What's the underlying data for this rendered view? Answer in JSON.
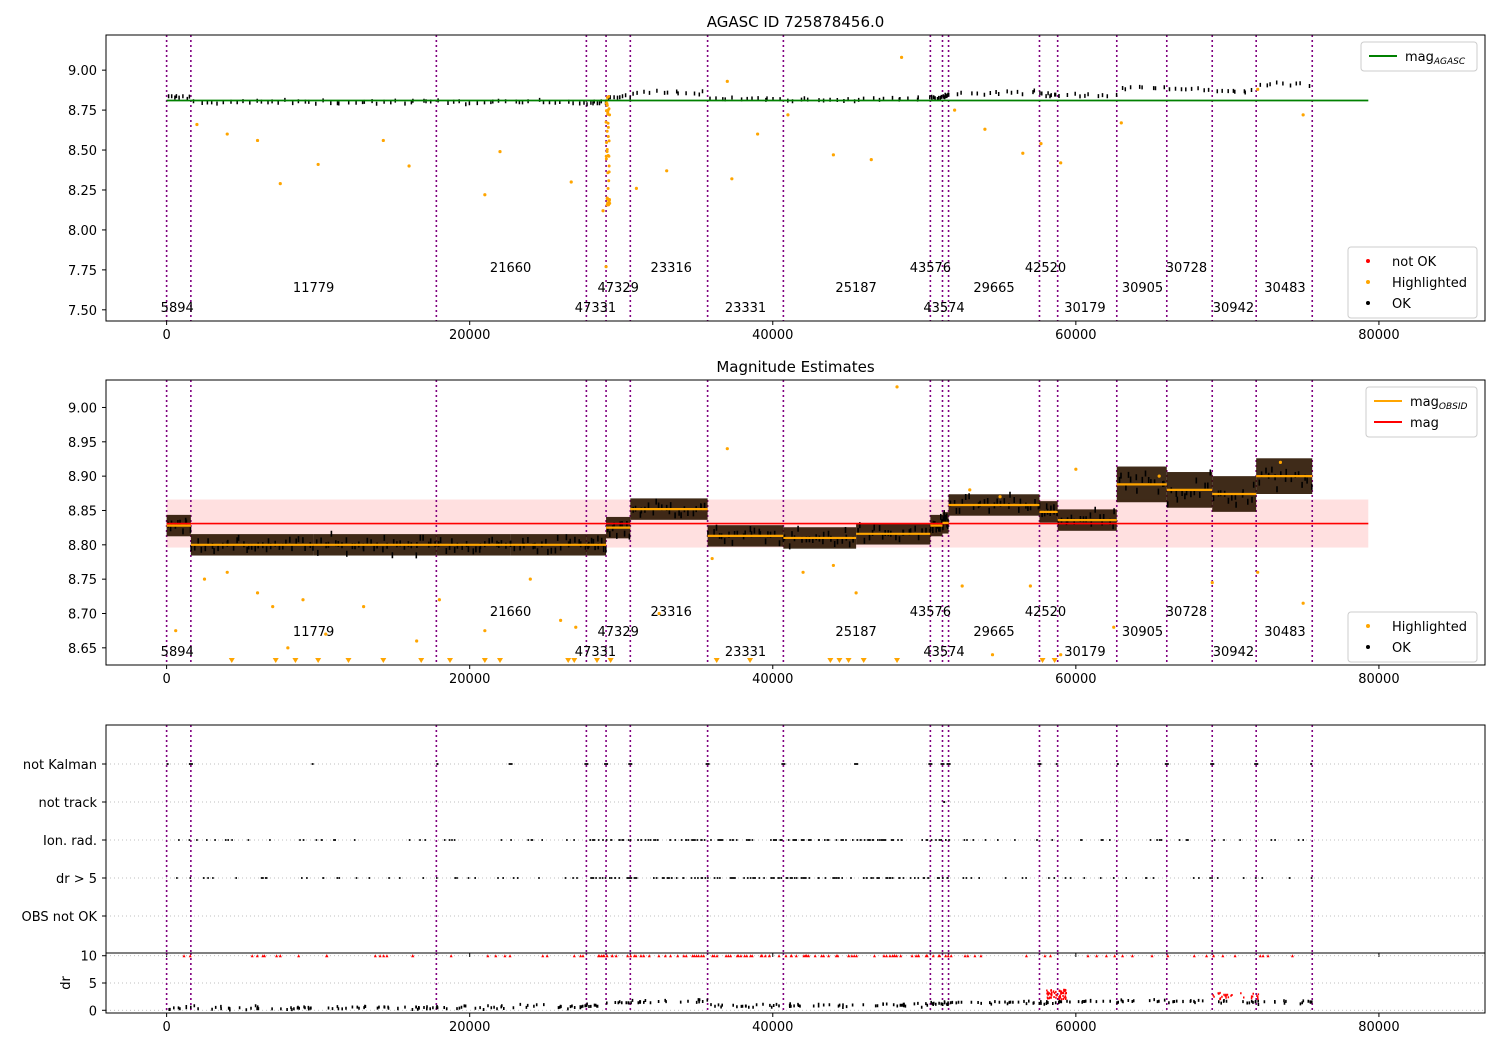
{
  "chart_data": [
    {
      "type": "scatter",
      "title": "AGASC ID 725878456.0",
      "xlim": [
        -4000,
        87000
      ],
      "ylim": [
        7.43,
        9.22
      ],
      "x_ticks": [
        0,
        20000,
        40000,
        60000,
        80000
      ],
      "x_tick_labels": [
        "0",
        "20000",
        "40000",
        "60000",
        "80000"
      ],
      "y_ticks": [
        7.5,
        7.75,
        8.0,
        8.25,
        8.5,
        8.75,
        9.0
      ],
      "y_tick_labels": [
        "7.50",
        "7.75",
        "8.00",
        "8.25",
        "8.50",
        "8.75",
        "9.00"
      ],
      "agasc_mag": 8.81,
      "agasc_line_x": [
        0,
        79300
      ],
      "segment_levels": [
        8.83,
        8.8,
        8.8,
        8.8,
        8.8,
        8.8,
        8.83,
        8.86,
        8.82,
        8.81,
        8.82,
        8.83,
        8.84,
        8.86,
        8.85,
        8.84,
        8.89,
        8.88,
        8.87,
        8.91,
        8.89,
        8.87
      ],
      "legends": [
        {
          "position": "top-right",
          "items": [
            {
              "label": "mag",
              "sub": "AGASC",
              "color": "#008000",
              "kind": "line"
            }
          ]
        },
        {
          "position": "lower-right",
          "items": [
            {
              "label": "not OK",
              "color": "#ff0000",
              "kind": "dot"
            },
            {
              "label": "Highlighted",
              "color": "#ffa500",
              "kind": "dot"
            },
            {
              "label": "OK",
              "color": "#000000",
              "kind": "dot"
            }
          ]
        }
      ]
    },
    {
      "type": "scatter",
      "title": "Magnitude Estimates",
      "xlim": [
        -4000,
        87000
      ],
      "ylim": [
        8.625,
        9.04
      ],
      "x_ticks": [
        0,
        20000,
        40000,
        60000,
        80000
      ],
      "x_tick_labels": [
        "0",
        "20000",
        "40000",
        "60000",
        "80000"
      ],
      "y_ticks": [
        8.65,
        8.7,
        8.75,
        8.8,
        8.85,
        8.9,
        8.95,
        9.0
      ],
      "y_tick_labels": [
        "8.65",
        "8.70",
        "8.75",
        "8.80",
        "8.85",
        "8.90",
        "8.95",
        "9.00"
      ],
      "mag": 8.831,
      "mag_band": [
        8.796,
        8.866
      ],
      "mag_line_x": [
        0,
        79300
      ],
      "obsid_mags": [
        8.828,
        8.8,
        8.8,
        8.8,
        8.8,
        8.8,
        8.825,
        8.852,
        8.813,
        8.81,
        8.816,
        8.828,
        8.832,
        8.858,
        8.848,
        8.836,
        8.888,
        8.88,
        8.874,
        8.9,
        8.88,
        8.865
      ],
      "legends": [
        {
          "position": "top-right",
          "items": [
            {
              "label": "mag",
              "sub": "OBSID",
              "color": "#ffa500",
              "kind": "line"
            },
            {
              "label": "mag",
              "sub": "",
              "color": "#ff0000",
              "kind": "line"
            }
          ]
        },
        {
          "position": "lower-right",
          "items": [
            {
              "label": "Highlighted",
              "color": "#ffa500",
              "kind": "dot"
            },
            {
              "label": "OK",
              "color": "#000000",
              "kind": "dot"
            }
          ]
        }
      ]
    },
    {
      "type": "scatter",
      "title": "",
      "xlim": [
        -4000,
        87000
      ],
      "categories": [
        "not Kalman",
        "not track",
        "Ion. rad.",
        "dr > 5",
        "OBS not OK"
      ],
      "flag_segments": {
        "not Kalman": [
          0,
          1,
          3,
          4,
          5,
          6,
          7,
          8,
          9,
          10,
          11,
          12,
          13,
          14,
          16,
          17,
          18,
          19,
          20,
          21
        ],
        "not track": [
          12
        ],
        "Ion. rad.": [
          0,
          1,
          2,
          3,
          4,
          5,
          6,
          7,
          8,
          9,
          10,
          11,
          12,
          13,
          14,
          15,
          16,
          17,
          18,
          19,
          20,
          21
        ],
        "dr > 5": [
          0,
          1,
          2,
          3,
          4,
          5,
          6,
          7,
          8,
          9,
          10,
          11,
          12,
          13,
          14,
          15,
          16,
          17,
          18,
          19,
          20,
          21
        ],
        "OBS not OK": []
      },
      "x_ticks": [
        0,
        20000,
        40000,
        60000,
        80000
      ],
      "x_tick_labels": [
        "0",
        "20000",
        "40000",
        "60000",
        "80000"
      ]
    },
    {
      "type": "scatter",
      "title": "",
      "ylabel": "dr",
      "xlim": [
        -4000,
        87000
      ],
      "ylim": [
        -0.5,
        10.5
      ],
      "y_ticks": [
        0,
        5,
        10
      ],
      "y_tick_labels": [
        "0",
        "5",
        "10"
      ],
      "clip_value": 10,
      "dr_levels": [
        0.4,
        0.4,
        0.5,
        0.6,
        0.7,
        0.9,
        1.4,
        1.6,
        0.9,
        0.9,
        1.0,
        1.2,
        1.3,
        1.4,
        1.4,
        1.5,
        1.7,
        1.6,
        1.6,
        1.5,
        1.5,
        1.5
      ],
      "x_ticks": [
        0,
        20000,
        40000,
        60000,
        80000
      ],
      "x_tick_labels": [
        "0",
        "20000",
        "40000",
        "60000",
        "80000"
      ]
    }
  ],
  "observation_boundaries": [
    0,
    1600,
    17800,
    27700,
    29000,
    30600,
    35700,
    40700,
    50400,
    51200,
    51600,
    57600,
    58800,
    62700,
    66000,
    69000,
    71900,
    75600
  ],
  "observations": [
    {
      "obsid": "5894",
      "x": 700,
      "row": 0
    },
    {
      "obsid": "11779",
      "x": 9700,
      "row": 1
    },
    {
      "obsid": "21660",
      "x": 22700,
      "row": 2
    },
    {
      "obsid": "47331",
      "x": 28300,
      "row": 0
    },
    {
      "obsid": "47329",
      "x": 29800,
      "row": 1
    },
    {
      "obsid": "23316",
      "x": 33300,
      "row": 2
    },
    {
      "obsid": "23331",
      "x": 38200,
      "row": 0
    },
    {
      "obsid": "25187",
      "x": 45500,
      "row": 1
    },
    {
      "obsid": "43576",
      "x": 50400,
      "row": 2
    },
    {
      "obsid": "43574",
      "x": 51300,
      "row": 0
    },
    {
      "obsid": "29665",
      "x": 54600,
      "row": 1
    },
    {
      "obsid": "42520",
      "x": 58000,
      "row": 2
    },
    {
      "obsid": "30179",
      "x": 60600,
      "row": 0
    },
    {
      "obsid": "30905",
      "x": 64400,
      "row": 1
    },
    {
      "obsid": "30728",
      "x": 67300,
      "row": 2
    },
    {
      "obsid": "30942",
      "x": 70400,
      "row": 0
    },
    {
      "obsid": "30483",
      "x": 73800,
      "row": 1
    }
  ]
}
